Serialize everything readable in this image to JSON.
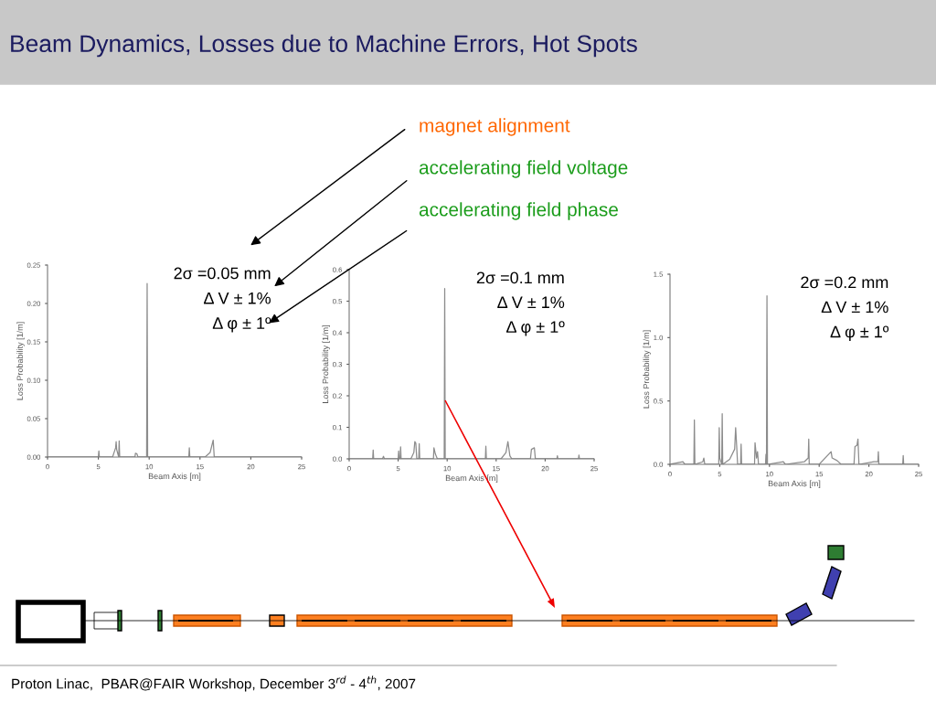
{
  "chart_data": [
    {
      "type": "line",
      "title": "Beam Dynamics, Losses due to Machine Errors, Hot Spots",
      "xlabel": "Beam Axis [m]",
      "ylabel": "Loss Probability [1/m]",
      "xlim": [
        0,
        25
      ],
      "xticks": [
        0,
        5,
        10,
        15,
        20,
        25
      ],
      "ylim": [
        0,
        0.25
      ],
      "yticks": [
        {
          "value": 0,
          "label": "0.00"
        },
        0.05,
        {
          "value": 0.1,
          "label": "0.10"
        },
        0.15,
        {
          "value": 0.2,
          "label": "0.20"
        },
        0.25
      ],
      "grid": false,
      "legend": false,
      "annotations": [
        "2σ =0.05 mm",
        "Δ V ± 1%",
        "Δ φ ± 1º",
        "magnet alignment",
        "accelerating field voltage",
        "accelerating field phase",
        "Proton Linac,  PBAR@FAIR Workshop, December 3$^{rd}$ - 4$^{th}$, 2007"
      ],
      "series": [
        {
          "color": "#8c8c8c",
          "x": [
            0,
            5,
            5.05,
            5.1,
            6.4,
            6.7,
            6.75,
            6.8,
            7.0,
            7.05,
            7.1,
            8.6,
            8.65,
            8.8,
            8.9,
            9.75,
            9.8,
            9.85,
            13.9,
            13.95,
            14.0,
            15.5,
            16.0,
            16.3,
            16.4,
            25
          ],
          "values": [
            0,
            0,
            0.008,
            0,
            0,
            0.012,
            0.02,
            0.01,
            0,
            0.021,
            0,
            0,
            0.005,
            0.004,
            0,
            0,
            0.226,
            0,
            0,
            0.012,
            0,
            0,
            0.006,
            0.022,
            0,
            0
          ]
        }
      ]
    },
    {
      "type": "line",
      "xlabel": "Beam Axis [m]",
      "ylabel": "Loss Probability [1/m]",
      "xlim": [
        0,
        25
      ],
      "xticks": [
        0,
        5,
        10,
        15,
        20,
        25
      ],
      "ylim": [
        0,
        0.6
      ],
      "yticks": [
        {
          "value": 0,
          "label": "0.0"
        },
        0.1,
        0.2,
        0.3,
        0.4,
        0.5,
        0.6
      ],
      "grid": false,
      "legend": false,
      "annotations": [
        "2σ =0.1 mm",
        "Δ V ± 1%",
        "Δ φ ± 1º"
      ],
      "series": [
        {
          "color": "#8c8c8c",
          "x": [
            0,
            2.4,
            2.45,
            2.5,
            3.4,
            3.5,
            3.6,
            5.0,
            5.05,
            5.1,
            5.2,
            5.25,
            5.3,
            6.3,
            6.6,
            6.7,
            6.8,
            6.9,
            7.1,
            7.15,
            7.2,
            8.6,
            8.65,
            8.8,
            9.0,
            9.7,
            9.75,
            9.8,
            13.9,
            13.95,
            14.0,
            15.5,
            16.0,
            16.2,
            16.4,
            16.6,
            18.5,
            18.6,
            18.9,
            19.0,
            21.2,
            21.25,
            21.3,
            23.4,
            23.45,
            23.5,
            25
          ],
          "values": [
            0,
            0,
            0.028,
            0,
            0,
            0.008,
            0,
            0,
            0.025,
            0,
            0,
            0.038,
            0,
            0,
            0.02,
            0.055,
            0.05,
            0,
            0,
            0.048,
            0,
            0,
            0.035,
            0.015,
            0,
            0,
            0.54,
            0,
            0,
            0.04,
            0,
            0,
            0.02,
            0.055,
            0.01,
            0,
            0,
            0.03,
            0.035,
            0,
            0,
            0.01,
            0,
            0,
            0.012,
            0,
            0
          ]
        }
      ]
    },
    {
      "type": "line",
      "xlabel": "Beam Axis [m]",
      "ylabel": "Loss Probability [1/m]",
      "xlim": [
        0,
        25
      ],
      "xticks": [
        0,
        5,
        10,
        15,
        20,
        25
      ],
      "ylim": [
        0,
        1.5
      ],
      "yticks": [
        {
          "value": 0,
          "label": "0.0"
        },
        0.5,
        {
          "value": 1,
          "label": "1.0"
        },
        1.5
      ],
      "grid": false,
      "legend": false,
      "annotations": [
        "2σ =0.2 mm",
        "Δ V ± 1%",
        "Δ φ ± 1º"
      ],
      "series": [
        {
          "color": "#8c8c8c",
          "x": [
            0,
            1.3,
            1.5,
            2.4,
            2.45,
            2.5,
            3.3,
            3.4,
            3.5,
            4.9,
            4.95,
            5.0,
            5.2,
            5.25,
            5.3,
            6.0,
            6.5,
            6.6,
            6.7,
            6.8,
            7.1,
            7.15,
            7.2,
            8.5,
            8.55,
            8.7,
            8.8,
            8.9,
            9.6,
            9.65,
            9.7,
            9.75,
            9.8,
            11.4,
            11.6,
            13.5,
            13.9,
            13.95,
            14.0,
            15.0,
            16.2,
            16.3,
            16.8,
            17.2,
            18.5,
            18.6,
            18.8,
            18.9,
            19.0,
            20.5,
            20.9,
            20.95,
            21.0,
            23.4,
            23.45,
            23.5,
            25
          ],
          "values": [
            0,
            0.02,
            0,
            0,
            0.35,
            0,
            0.02,
            0.05,
            0,
            0,
            0.29,
            0.05,
            0,
            0.4,
            0,
            0.04,
            0.12,
            0.29,
            0.15,
            0,
            0,
            0.16,
            0,
            0,
            0.17,
            0.05,
            0.1,
            0,
            0,
            0.08,
            0,
            1.33,
            0,
            0.02,
            0,
            0.02,
            0.05,
            0.2,
            0,
            0,
            0.1,
            0.05,
            0.03,
            0,
            0,
            0.14,
            0.15,
            0.2,
            0,
            0.02,
            0.02,
            0.1,
            0,
            0,
            0.07,
            0,
            0
          ]
        }
      ]
    }
  ]
}
